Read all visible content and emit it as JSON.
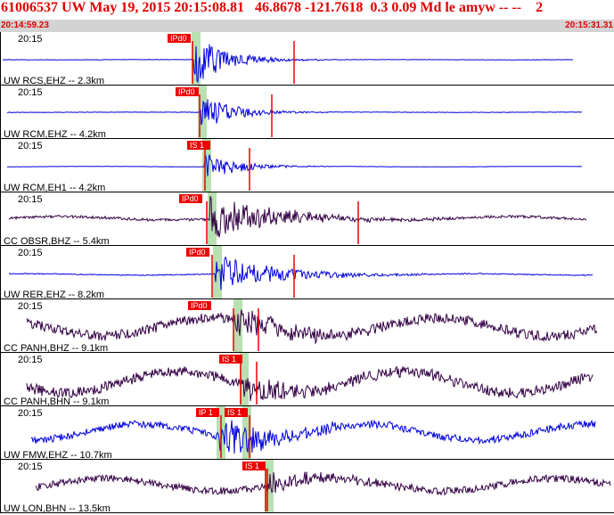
{
  "header": {
    "title": "61006537 UW May 19, 2015 20:15:08.81   46.8678 -121.7618  0.3 0.09 Md le amyw -- --    2",
    "time_start": "20:14:59.23",
    "time_end": "20:15:31.31"
  },
  "colors": {
    "accent_red": "#e00000",
    "trace_blue": "#0000dd",
    "trace_purple": "#330044",
    "pick_green": "#b8e0b0",
    "pick_red": "#ee0000",
    "header_bar": "#d3d3d3"
  },
  "panels": [
    {
      "time_label": "20:15",
      "label": "UW RCS,EHZ -- 2.3km",
      "color": "blue",
      "phases": [
        {
          "text": "IPd0"
        }
      ]
    },
    {
      "time_label": "20:15",
      "label": "UW RCM,EHZ -- 4.2km",
      "color": "blue",
      "phases": [
        {
          "text": "IPd0"
        }
      ]
    },
    {
      "time_label": "20:15",
      "label": "UW RCM,EH1 -- 4.2km",
      "color": "blue",
      "phases": [
        {
          "text": "IS 1"
        }
      ]
    },
    {
      "time_label": "20:15",
      "label": "CC OBSR,BHZ -- 5.4km",
      "color": "purple",
      "phases": [
        {
          "text": "IPd0"
        }
      ]
    },
    {
      "time_label": "20:15",
      "label": "UW RER,EHZ -- 8.2km",
      "color": "blue",
      "phases": [
        {
          "text": "IPd0"
        }
      ]
    },
    {
      "time_label": "20:15",
      "label": "CC PANH,BHZ -- 9.1km",
      "color": "purple",
      "phases": [
        {
          "text": "IPd0"
        }
      ]
    },
    {
      "time_label": "20:15",
      "label": "CC PANH,BHN -- 9.1km",
      "color": "purple",
      "phases": [
        {
          "text": "IS 1"
        }
      ]
    },
    {
      "time_label": "20:15",
      "label": "UW FMW,EHZ -- 10.7km",
      "color": "blue",
      "phases": [
        {
          "text": "IP 1"
        },
        {
          "text": "IS 1"
        }
      ]
    },
    {
      "time_label": "20:15",
      "label": "UW LON,BHN -- 13.5km",
      "color": "purple",
      "phases": [
        {
          "text": "IS 1"
        }
      ]
    }
  ]
}
